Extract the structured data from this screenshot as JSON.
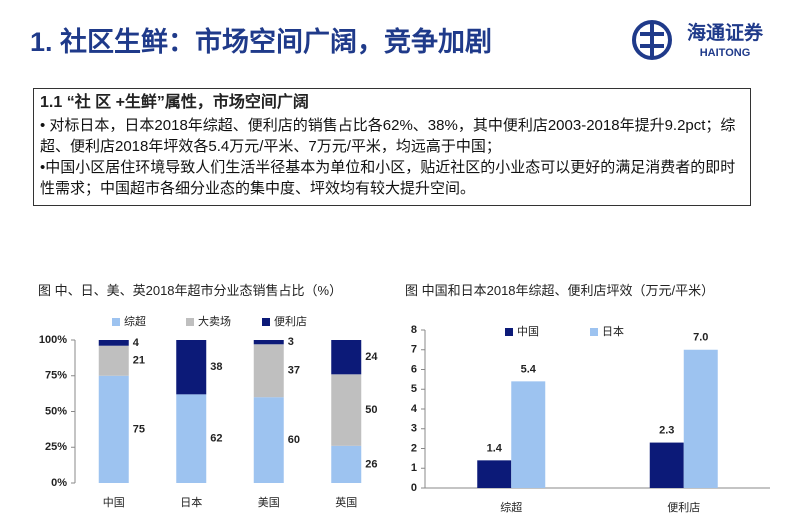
{
  "header": {
    "title": "1. 社区生鲜：市场空间广阔，竞争加剧",
    "logo_cn": "海通证券",
    "logo_en": "HAITONG"
  },
  "box": {
    "heading": "1.1 “社 区 +生鲜”属性，市场空间广阔",
    "points": [
      "• 对标日本，日本2018年综超、便利店的销售占比各62%、38%，其中便利店2003-2018年提升9.2pct；综超、便利店2018年坪效各5.4万元/平米、7万元/平米，均远高于中国；",
      "•中国小区居住环境导致人们生活半径基本为单位和小区，贴近社区的小业态可以更好的满足消费者的即时性需求；中国超市各细分业态的集中度、坪效均有较大提升空间。"
    ]
  },
  "chart_data": [
    {
      "type": "stacked_bar",
      "title": "图 中、日、美、英2018年超市分业态销售占比（%）",
      "categories": [
        "中国",
        "日本",
        "美国",
        "英国"
      ],
      "series": [
        {
          "name": "综超",
          "color": "#9dc3f0",
          "values": [
            75,
            62,
            60,
            26
          ]
        },
        {
          "name": "大卖场",
          "color": "#bfbfbf",
          "values": [
            21,
            null,
            37,
            50
          ]
        },
        {
          "name": "便利店",
          "color": "#0c1a78",
          "values": [
            4,
            38,
            3,
            24
          ]
        }
      ],
      "ylim": [
        0,
        100
      ],
      "yticks": [
        {
          "value": 0,
          "label": "0%"
        },
        {
          "value": 25,
          "label": "25%"
        },
        {
          "value": 50,
          "label": "50%"
        },
        {
          "value": 75,
          "label": "75%"
        },
        {
          "value": 100,
          "label": "100%"
        }
      ]
    },
    {
      "type": "bar",
      "title": "图 中国和日本2018年综超、便利店坪效（万元/平米）",
      "categories": [
        "综超",
        "便利店"
      ],
      "series": [
        {
          "name": "中国",
          "color": "#0c1a78",
          "values": [
            1.4,
            2.3
          ]
        },
        {
          "name": "日本",
          "color": "#9dc3f0",
          "values": [
            5.4,
            7.0
          ],
          "value_labels": [
            "5.4",
            "7.0"
          ]
        }
      ],
      "ylim": [
        0,
        8
      ],
      "yticks": [
        0,
        1,
        2,
        3,
        4,
        5,
        6,
        7,
        8
      ]
    }
  ]
}
